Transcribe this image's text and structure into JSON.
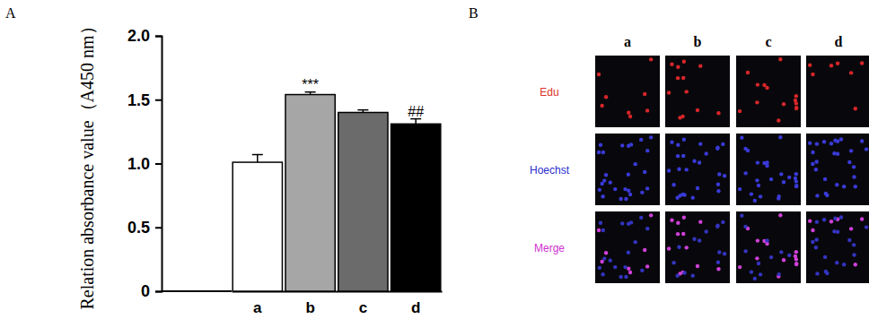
{
  "chart_data": {
    "type": "bar",
    "title": "A",
    "y_label": "Relation absorbance value（A450 nm）",
    "categories": [
      "a",
      "b",
      "c",
      "d"
    ],
    "values": [
      1.01,
      1.54,
      1.4,
      1.31
    ],
    "errors": [
      0.06,
      0.02,
      0.02,
      0.04
    ],
    "colors": [
      "#ffffff",
      "#a6a6a6",
      "#6b6b6b",
      "#000000"
    ],
    "ylim": [
      0,
      2
    ],
    "yticks": [
      0,
      0.5,
      {
        "value": 1,
        "label": "1.0"
      },
      1.5,
      {
        "value": 2,
        "label": "2.0"
      }
    ],
    "annotations": [
      {
        "text": "***",
        "category": "b"
      },
      {
        "text": "##",
        "category": "d"
      }
    ],
    "grid": false
  },
  "panel_b": {
    "label": "B",
    "columns": [
      "a",
      "b",
      "c",
      "d"
    ],
    "rows": [
      "Edu",
      "Hoechst",
      "Merge"
    ]
  }
}
